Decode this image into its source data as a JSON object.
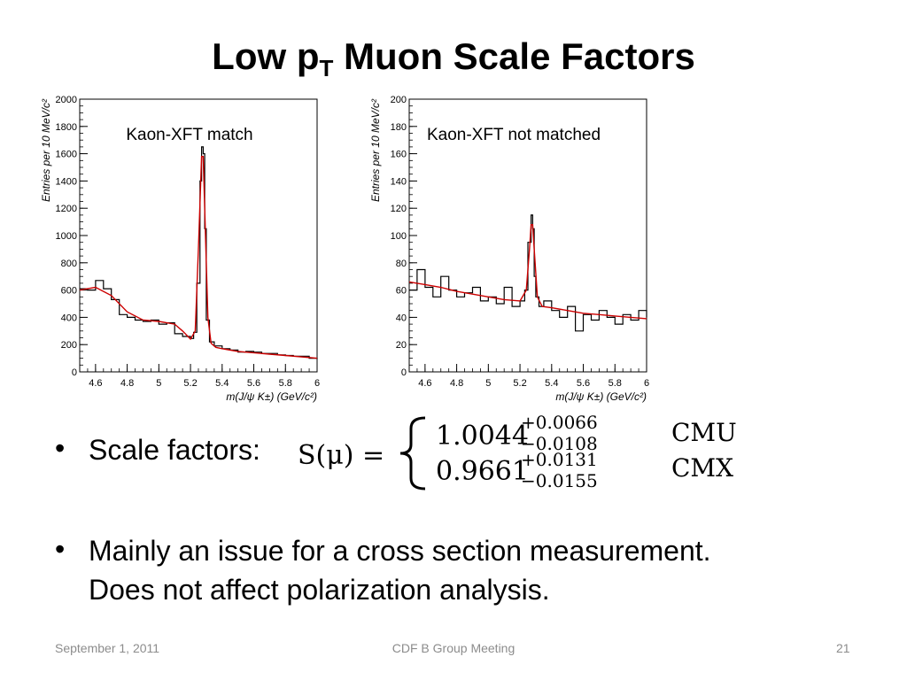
{
  "slide": {
    "title_main": "Low p",
    "title_sub": "T",
    "title_rest": " Muon Scale Factors"
  },
  "bullets": [
    {
      "text": "Scale factors:"
    },
    {
      "line1": "Mainly an issue for a cross section measurement.",
      "line2": "Does not affect polarization analysis."
    }
  ],
  "formula": {
    "lhs": "S(μ) =",
    "rows": [
      {
        "value": "1.0044",
        "up": "+0.0066",
        "down": "−0.0108",
        "label": "CMU"
      },
      {
        "value": "0.9661",
        "up": "+0.0131",
        "down": "−0.0155",
        "label": "CMX"
      }
    ]
  },
  "footer": {
    "date": "September 1, 2011",
    "meeting": "CDF B Group Meeting",
    "page": "21"
  },
  "chart_data": [
    {
      "type": "line",
      "title": "Kaon-XFT match",
      "xlabel": "m(J/ψ K±)  (GeV/c²)",
      "ylabel": "Entries per 10 MeV/c²",
      "xlim": [
        4.5,
        6.0
      ],
      "ylim": [
        0,
        2000
      ],
      "xticks": [
        4.6,
        4.8,
        5,
        5.2,
        5.4,
        5.6,
        5.8,
        6
      ],
      "yticks": [
        0,
        200,
        400,
        600,
        800,
        1000,
        1200,
        1400,
        1600,
        1800,
        2000
      ],
      "series": [
        {
          "style": "histogram",
          "color": "#000000",
          "x": [
            4.5,
            4.55,
            4.6,
            4.65,
            4.7,
            4.75,
            4.8,
            4.85,
            4.9,
            4.95,
            5.0,
            5.05,
            5.1,
            5.15,
            5.2,
            5.22,
            5.24,
            5.26,
            5.27,
            5.28,
            5.29,
            5.3,
            5.32,
            5.35,
            5.4,
            5.45,
            5.5,
            5.55,
            5.6,
            5.65,
            5.7,
            5.75,
            5.8,
            5.85,
            5.9,
            5.95,
            6.0
          ],
          "y": [
            610,
            600,
            670,
            610,
            530,
            420,
            400,
            380,
            370,
            380,
            350,
            360,
            280,
            260,
            245,
            290,
            650,
            1400,
            1650,
            1600,
            1050,
            380,
            220,
            190,
            170,
            160,
            145,
            150,
            145,
            135,
            135,
            125,
            120,
            115,
            115,
            100,
            95
          ]
        },
        {
          "style": "fit",
          "color": "#cc0000",
          "x": [
            4.5,
            4.6,
            4.7,
            4.8,
            4.9,
            5.0,
            5.1,
            5.15,
            5.2,
            5.23,
            5.25,
            5.27,
            5.28,
            5.29,
            5.31,
            5.33,
            5.36,
            5.4,
            5.5,
            5.6,
            5.7,
            5.8,
            5.9,
            6.0
          ],
          "y": [
            600,
            620,
            560,
            440,
            380,
            370,
            350,
            300,
            240,
            300,
            900,
            1580,
            1580,
            1200,
            400,
            210,
            180,
            170,
            150,
            140,
            130,
            120,
            110,
            100
          ]
        }
      ]
    },
    {
      "type": "line",
      "title": "Kaon-XFT not matched",
      "xlabel": "m(J/ψ K±)  (GeV/c²)",
      "ylabel": "Entries per 10 MeV/c²",
      "xlim": [
        4.5,
        6.0
      ],
      "ylim": [
        0,
        200
      ],
      "xticks": [
        4.6,
        4.8,
        5,
        5.2,
        5.4,
        5.6,
        5.8,
        6
      ],
      "yticks": [
        0,
        20,
        40,
        60,
        80,
        100,
        120,
        140,
        160,
        180,
        200
      ],
      "series": [
        {
          "style": "histogram",
          "color": "#000000",
          "x": [
            4.5,
            4.55,
            4.6,
            4.65,
            4.7,
            4.75,
            4.8,
            4.85,
            4.9,
            4.95,
            5.0,
            5.05,
            5.1,
            5.15,
            5.2,
            5.23,
            5.25,
            5.27,
            5.28,
            5.29,
            5.3,
            5.32,
            5.35,
            5.4,
            5.45,
            5.5,
            5.55,
            5.6,
            5.65,
            5.7,
            5.75,
            5.8,
            5.85,
            5.9,
            5.95,
            6.0
          ],
          "y": [
            60,
            75,
            62,
            55,
            70,
            60,
            55,
            58,
            62,
            52,
            55,
            50,
            62,
            48,
            52,
            60,
            95,
            115,
            105,
            70,
            55,
            48,
            52,
            45,
            40,
            48,
            30,
            42,
            38,
            45,
            40,
            35,
            42,
            38,
            45,
            40
          ]
        },
        {
          "style": "fit",
          "color": "#cc0000",
          "x": [
            4.5,
            4.6,
            4.7,
            4.8,
            4.9,
            5.0,
            5.1,
            5.2,
            5.24,
            5.26,
            5.27,
            5.28,
            5.29,
            5.31,
            5.34,
            5.4,
            5.5,
            5.6,
            5.7,
            5.8,
            5.9,
            6.0
          ],
          "y": [
            66,
            64,
            62,
            59,
            57,
            55,
            53,
            52,
            60,
            90,
            108,
            108,
            90,
            55,
            48,
            47,
            45,
            43,
            42,
            41,
            40,
            39
          ]
        }
      ]
    }
  ]
}
